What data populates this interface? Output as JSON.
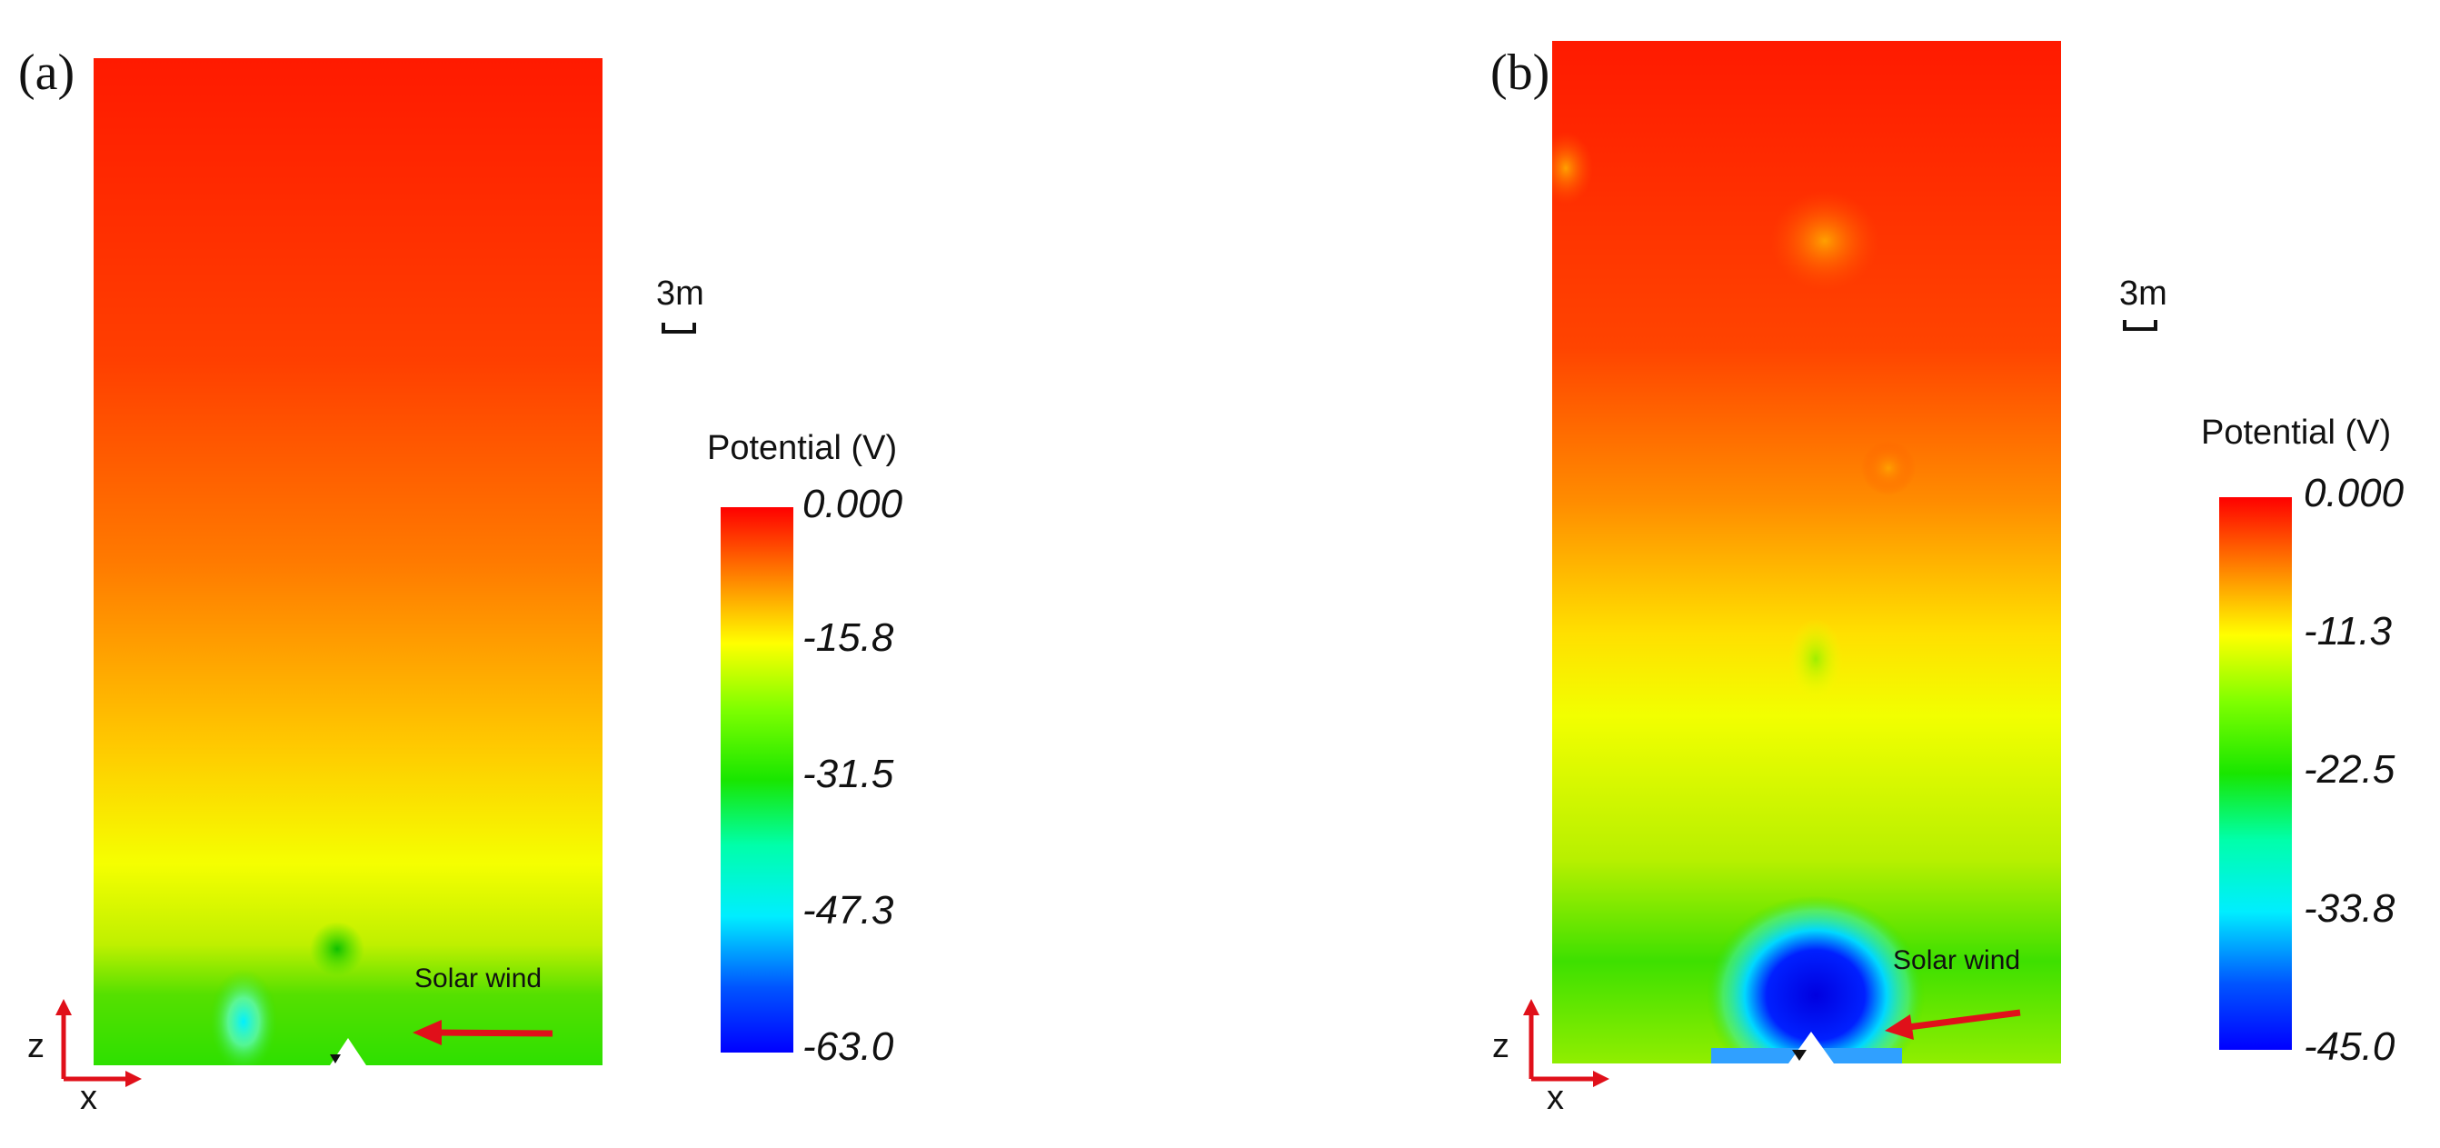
{
  "panels": [
    {
      "label": "(a)",
      "scale_text": "3m",
      "colorbar": {
        "title": "Potential (V)",
        "ticks": [
          "0.000",
          "-15.8",
          "-31.5",
          "-47.3",
          "-63.0"
        ],
        "min": -63.0,
        "max": 0.0
      },
      "annotation": "Solar wind",
      "axis_labels": {
        "z": "z",
        "x": "x"
      }
    },
    {
      "label": "(b)",
      "scale_text": "3m",
      "colorbar": {
        "title": "Potential (V)",
        "ticks": [
          "0.000",
          "-11.3",
          "-22.5",
          "-33.8",
          "-45.0"
        ],
        "min": -45.0,
        "max": 0.0
      },
      "annotation": "Solar wind",
      "axis_labels": {
        "z": "z",
        "x": "x"
      }
    }
  ],
  "colors": {
    "high": "#ff0000",
    "orange": "#ff7a00",
    "yellow": "#ffff00",
    "green": "#19e600",
    "cyan": "#00eeff",
    "low": "#0000ff",
    "arrow": "#e0101a",
    "axis": "#e0101a"
  }
}
